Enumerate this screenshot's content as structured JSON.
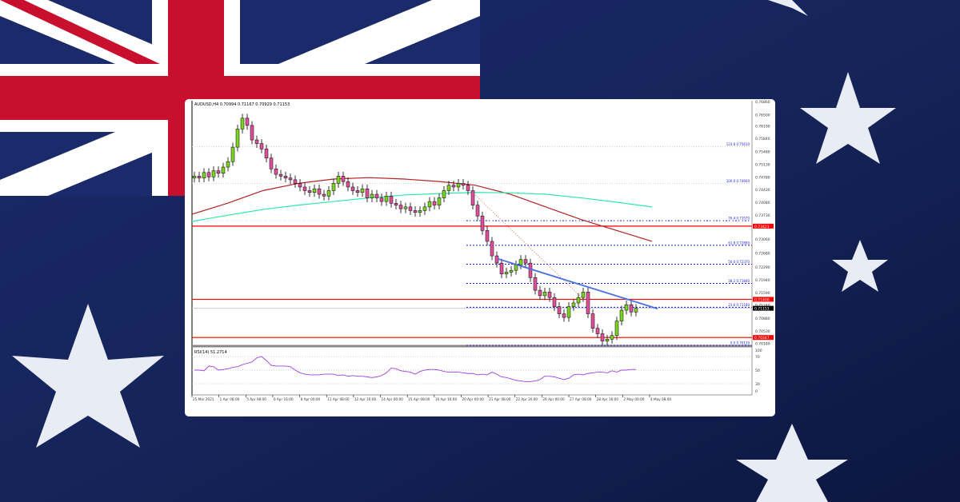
{
  "background": {
    "theme": "australian-flag",
    "colors": {
      "navy": "#16255e",
      "red": "#c8102e",
      "white": "#ffffff"
    }
  },
  "chart_data": {
    "type": "candlestick",
    "title": "AUDUSD,H4  0.70994 0.71167 0.70929 0.71153",
    "symbol": "AUDUSD",
    "timeframe": "H4",
    "ohlc_header": {
      "open": 0.70994,
      "high": 0.71167,
      "low": 0.70929,
      "close": 0.71153
    },
    "ylim": [
      0.7013,
      0.7686
    ],
    "y_ticks": [
      "0.76860",
      "0.76500",
      "0.76190",
      "0.75840",
      "0.75480",
      "0.75130",
      "0.74780",
      "0.74430",
      "0.74080",
      "0.73730",
      "0.73060",
      "0.72680",
      "0.72290",
      "0.71940",
      "0.71590",
      "0.71240",
      "0.70880",
      "0.70530",
      "0.70180"
    ],
    "x_ticks": [
      "25 Mar 2021",
      "1 Apr 08:00",
      "5 Apr 08:00",
      "6 Apr 16:00",
      "8 Apr 00:00",
      "11 Apr 08:00",
      "12 Apr 16:00",
      "14 Apr 00:00",
      "15 Apr 08:00",
      "16 Apr 16:00",
      "20 Apr 00:00",
      "21 Apr 08:00",
      "22 Apr 16:00",
      "26 Apr 00:00",
      "27 Apr 08:00",
      "28 Apr 16:00",
      "2 May 00:00",
      "4 May 08:00"
    ],
    "closes": [
      0.748,
      0.7475,
      0.749,
      0.7478,
      0.7495,
      0.7488,
      0.7505,
      0.752,
      0.756,
      0.761,
      0.764,
      0.762,
      0.758,
      0.757,
      0.7555,
      0.753,
      0.75,
      0.7485,
      0.748,
      0.7475,
      0.747,
      0.746,
      0.745,
      0.744,
      0.7435,
      0.7445,
      0.743,
      0.7425,
      0.744,
      0.746,
      0.748,
      0.7465,
      0.745,
      0.744,
      0.7435,
      0.7445,
      0.742,
      0.743,
      0.742,
      0.741,
      0.7425,
      0.7405,
      0.74,
      0.739,
      0.7395,
      0.7385,
      0.738,
      0.7385,
      0.7395,
      0.741,
      0.74,
      0.742,
      0.744,
      0.7455,
      0.745,
      0.746,
      0.7455,
      0.744,
      0.74,
      0.737,
      0.733,
      0.73,
      0.726,
      0.724,
      0.721,
      0.7215,
      0.722,
      0.7235,
      0.725,
      0.724,
      0.72,
      0.7165,
      0.715,
      0.716,
      0.7145,
      0.712,
      0.71,
      0.709,
      0.712,
      0.713,
      0.7145,
      0.716,
      0.71,
      0.706,
      0.7045,
      0.7025,
      0.703,
      0.704,
      0.708,
      0.711,
      0.7125,
      0.7105,
      0.7115
    ],
    "moving_averages": [
      {
        "color": "#b22222",
        "values": [
          0.7375,
          0.7405,
          0.744,
          0.746,
          0.7472,
          0.7476,
          0.7472,
          0.7465,
          0.7455,
          0.743,
          0.7395,
          0.736,
          0.733,
          0.73
        ]
      },
      {
        "color": "#2ee8a6",
        "values": [
          0.7355,
          0.7372,
          0.7388,
          0.74,
          0.741,
          0.742,
          0.7428,
          0.7432,
          0.7435,
          0.7434,
          0.743,
          0.742,
          0.7408,
          0.7395
        ]
      }
    ],
    "fibonacci": [
      {
        "label": "123.6 0.75610",
        "level": 0.7561
      },
      {
        "label": "100.0 0.74600",
        "level": 0.746
      },
      {
        "label": "76.4 0.73570",
        "level": 0.7357
      },
      {
        "label": "61.8 0.72890",
        "level": 0.7289
      },
      {
        "label": "50.0 0.72370",
        "level": 0.7237
      },
      {
        "label": "38.2 0.71840",
        "level": 0.7184
      },
      {
        "label": "23.6 0.71180",
        "level": 0.7118
      },
      {
        "label": "0.0 0.70130",
        "level": 0.7013
      }
    ],
    "horizontal_levels": [
      {
        "label": "0.73421",
        "level": 0.73421,
        "color": "#ff0000"
      },
      {
        "label": "0.71400",
        "level": 0.714,
        "color": "#ff0000"
      },
      {
        "label": "0.70347",
        "level": 0.70347,
        "color": "#ff0000"
      }
    ],
    "current_price": {
      "label": "0.71153",
      "level": 0.71153
    },
    "trendline": {
      "color": "#4a6fe0",
      "from": 0.7252,
      "to": 0.7114
    },
    "colors": {
      "bull": "#7cd320",
      "bear": "#e0509a",
      "fib": "#1a1adc"
    },
    "rsi": {
      "label": "RSI(14) 51.2714",
      "levels": [
        "100",
        "70",
        "50",
        "30",
        "0"
      ],
      "values": [
        50,
        50,
        49,
        56,
        55,
        50,
        51,
        52,
        54,
        55,
        58,
        60,
        62,
        68,
        70,
        64,
        57,
        56,
        56,
        56,
        55,
        50,
        46,
        44,
        43,
        43,
        43,
        44,
        44,
        44,
        42,
        43,
        41,
        42,
        41,
        41,
        40,
        39,
        40,
        42,
        46,
        53,
        52,
        49,
        48,
        47,
        44,
        48,
        50,
        51,
        51,
        50,
        48,
        47,
        47,
        47,
        46,
        45,
        45,
        43,
        44,
        43,
        47,
        44,
        40,
        39,
        37,
        35,
        34,
        33,
        33,
        34,
        36,
        41,
        41,
        40,
        38,
        36,
        38,
        43,
        44,
        43,
        45,
        46,
        47,
        47,
        46,
        49,
        47,
        50,
        50,
        51,
        51
      ]
    }
  }
}
